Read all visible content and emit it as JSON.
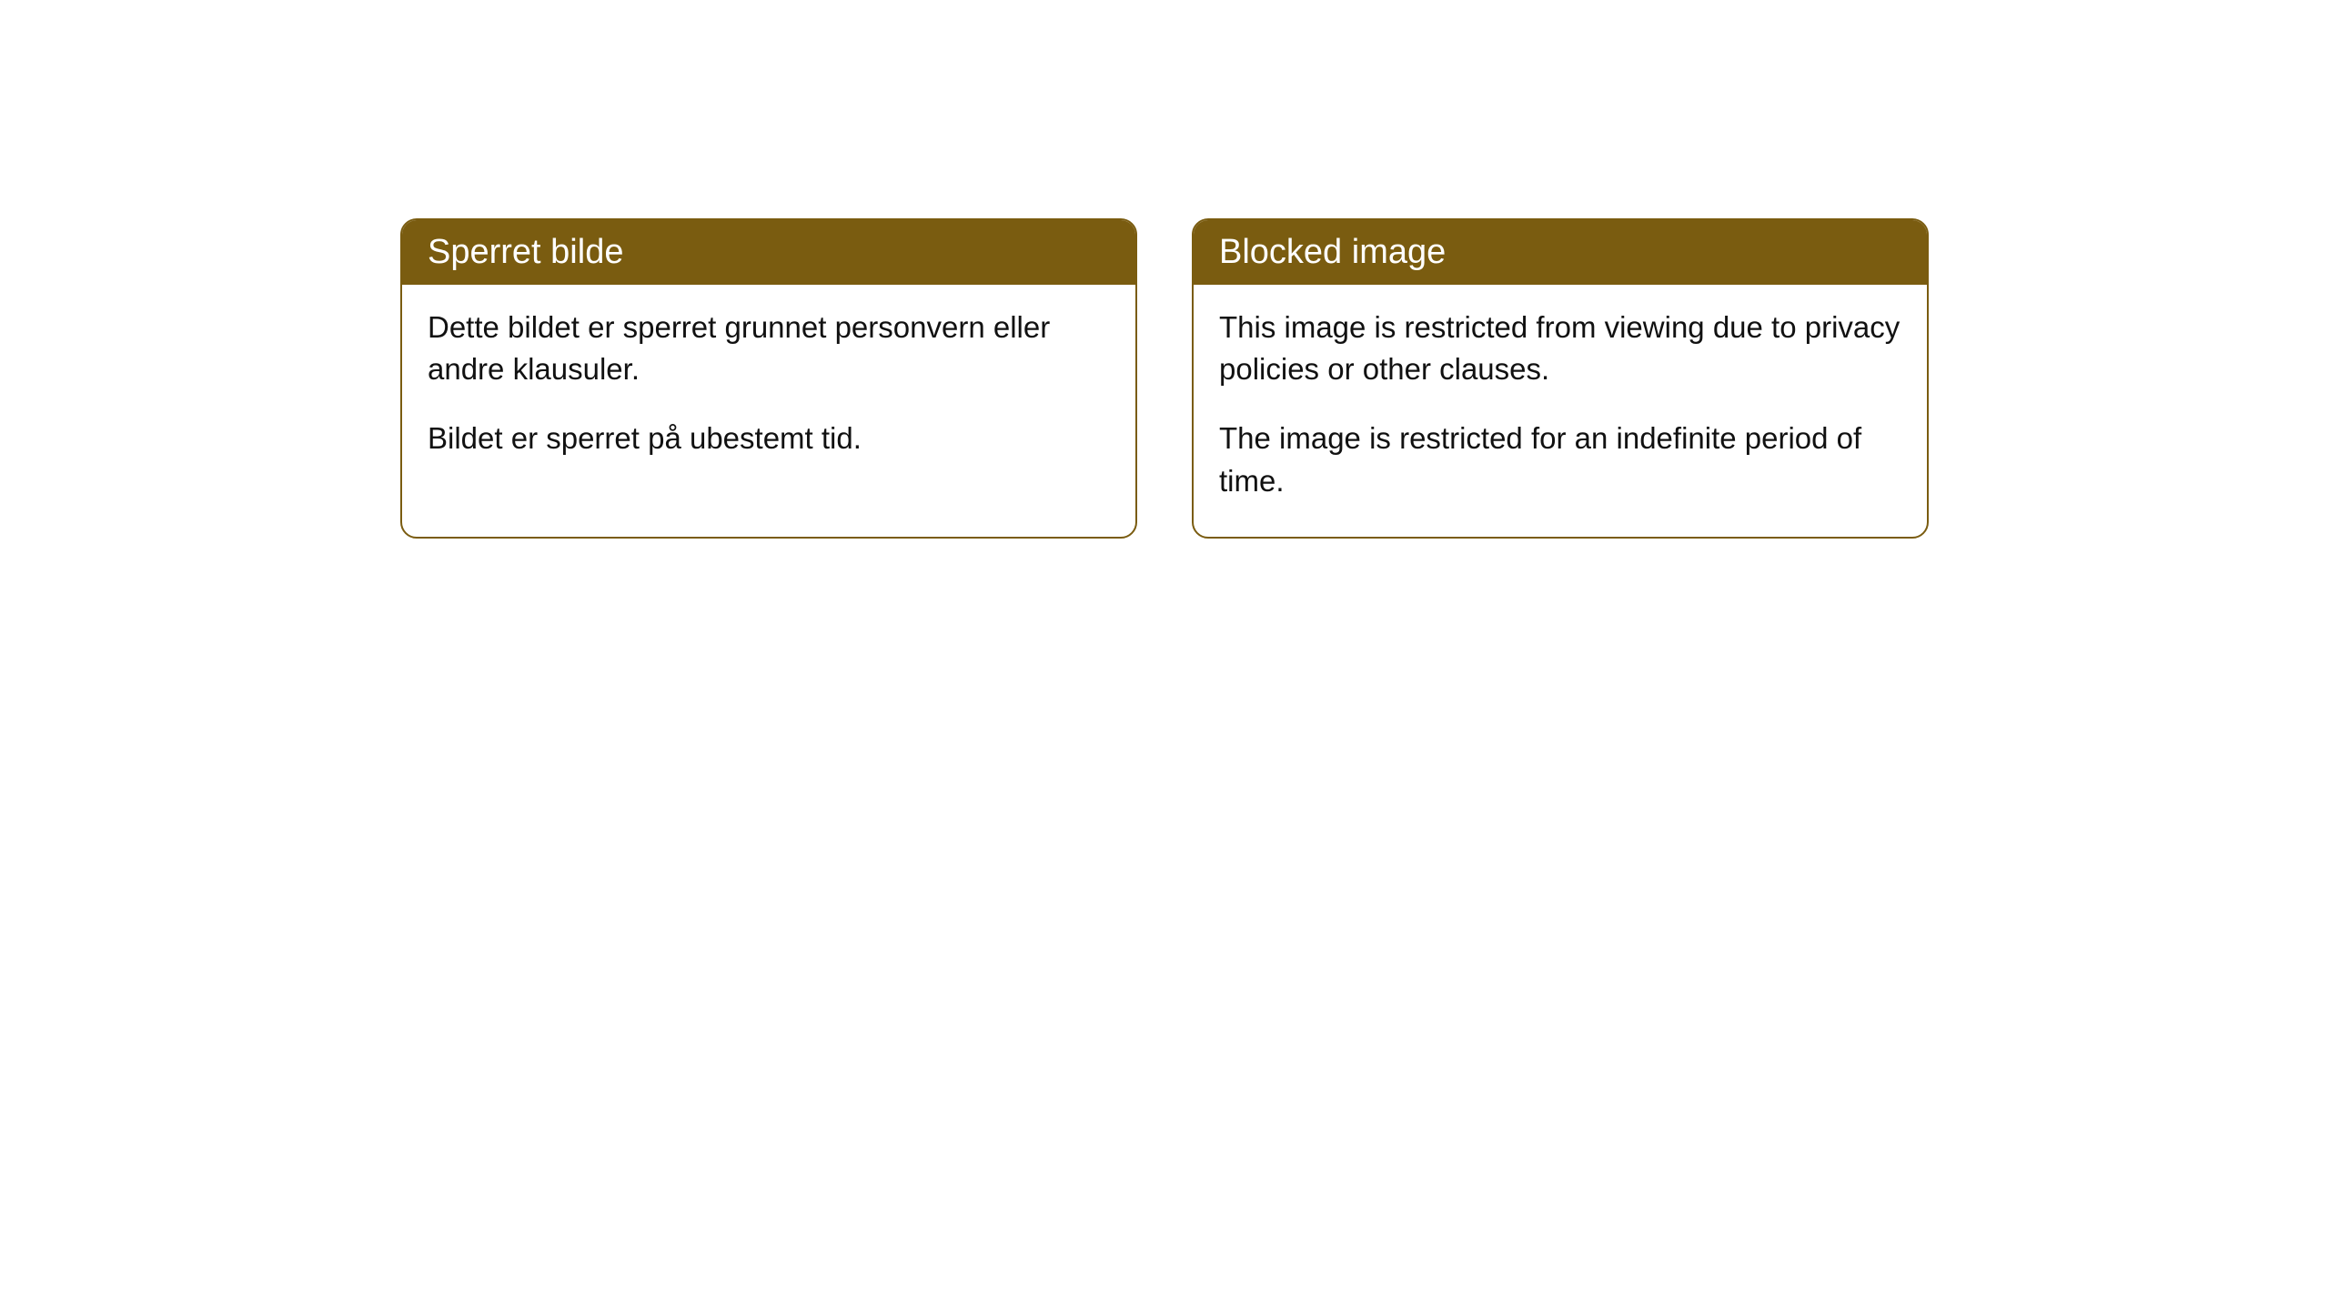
{
  "cards": [
    {
      "title": "Sperret bilde",
      "paragraph1": "Dette bildet er sperret grunnet personvern eller andre klausuler.",
      "paragraph2": "Bildet er sperret på ubestemt tid."
    },
    {
      "title": "Blocked image",
      "paragraph1": "This image is restricted from viewing due to privacy policies or other clauses.",
      "paragraph2": "The image is restricted for an indefinite period of time."
    }
  ],
  "styling": {
    "header_bg_color": "#7a5c10",
    "header_text_color": "#ffffff",
    "border_color": "#7a5c10",
    "body_bg_color": "#ffffff",
    "body_text_color": "#111111",
    "border_radius": 18,
    "header_font_size": 38,
    "body_font_size": 33
  }
}
